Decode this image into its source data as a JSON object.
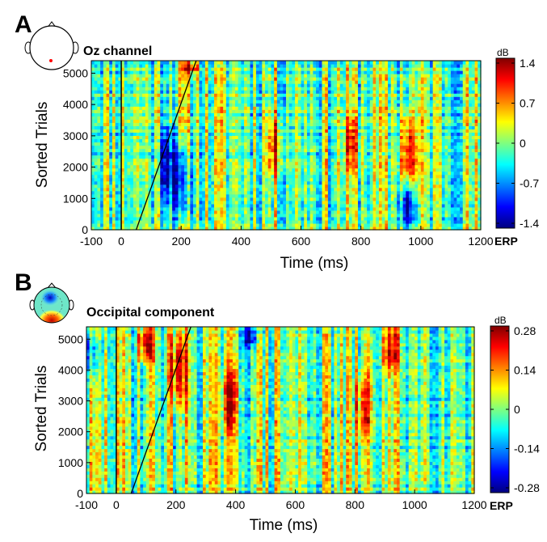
{
  "chart_data": [
    {
      "type": "heatmap",
      "panel": "A",
      "title": "Oz channel",
      "xlabel": "Time (ms)",
      "ylabel": "Sorted Trials",
      "xlim": [
        -100,
        1200
      ],
      "ylim": [
        0,
        5400
      ],
      "xticks": [
        -100,
        0,
        200,
        400,
        600,
        800,
        1000,
        1200
      ],
      "yticks": [
        0,
        1000,
        2000,
        3000,
        4000,
        5000
      ],
      "colorbar": {
        "unit": "dB",
        "ticks": [
          "1.4",
          "0.7",
          "0",
          "-0.7",
          "-1.4"
        ],
        "range": [
          -1.4,
          1.4
        ]
      },
      "extra_label": "ERP",
      "stimulus_onset_ms": 0,
      "sort_line": {
        "x_start_ms": 50,
        "y_start": 0,
        "x_end_ms": 250,
        "y_end": 5400
      },
      "head_map": "single-electrode-dot",
      "features": [
        {
          "t_ms": 200,
          "trials": [
            300,
            2800
          ],
          "value": -1.2
        },
        {
          "t_ms": 150,
          "trials": [
            1000,
            3200
          ],
          "value": -0.9
        },
        {
          "t_ms": 960,
          "trials": [
            1500,
            3600
          ],
          "value": 1.1
        },
        {
          "t_ms": 510,
          "trials": [
            1800,
            3500
          ],
          "value": 0.9
        },
        {
          "t_ms": 770,
          "trials": [
            2000,
            3600
          ],
          "value": 0.8
        },
        {
          "t_ms": 960,
          "trials": [
            0,
            1400
          ],
          "value": -1.0
        },
        {
          "t_ms": 230,
          "trials": [
            5000,
            5400
          ],
          "value": 1.3
        }
      ]
    },
    {
      "type": "heatmap",
      "panel": "B",
      "title": "Occipital component",
      "xlabel": "Time (ms)",
      "ylabel": "Sorted Trials",
      "xlim": [
        -100,
        1200
      ],
      "ylim": [
        0,
        5400
      ],
      "xticks": [
        -100,
        0,
        200,
        400,
        600,
        800,
        1000,
        1200
      ],
      "yticks": [
        0,
        1000,
        2000,
        3000,
        4000,
        5000
      ],
      "colorbar": {
        "unit": "dB",
        "ticks": [
          "0.28",
          "0.14",
          "0",
          "-0.14",
          "-0.28"
        ],
        "range": [
          -0.28,
          0.28
        ]
      },
      "extra_label": "ERP",
      "stimulus_onset_ms": 0,
      "sort_line": {
        "x_start_ms": 50,
        "y_start": 0,
        "x_end_ms": 250,
        "y_end": 5400
      },
      "head_map": "component-topography",
      "features": [
        {
          "t_ms": 100,
          "trials": [
            4300,
            5400
          ],
          "value": 0.26
        },
        {
          "t_ms": 210,
          "trials": [
            2700,
            5400
          ],
          "value": 0.24
        },
        {
          "t_ms": 380,
          "trials": [
            2100,
            4000
          ],
          "value": 0.2
        },
        {
          "t_ms": 450,
          "trials": [
            4800,
            5400
          ],
          "value": -0.22
        },
        {
          "t_ms": 830,
          "trials": [
            1800,
            3800
          ],
          "value": 0.18
        },
        {
          "t_ms": 920,
          "trials": [
            4000,
            5400
          ],
          "value": 0.2
        },
        {
          "t_ms": -80,
          "trials": [
            3800,
            5200
          ],
          "value": -0.16
        }
      ]
    }
  ]
}
